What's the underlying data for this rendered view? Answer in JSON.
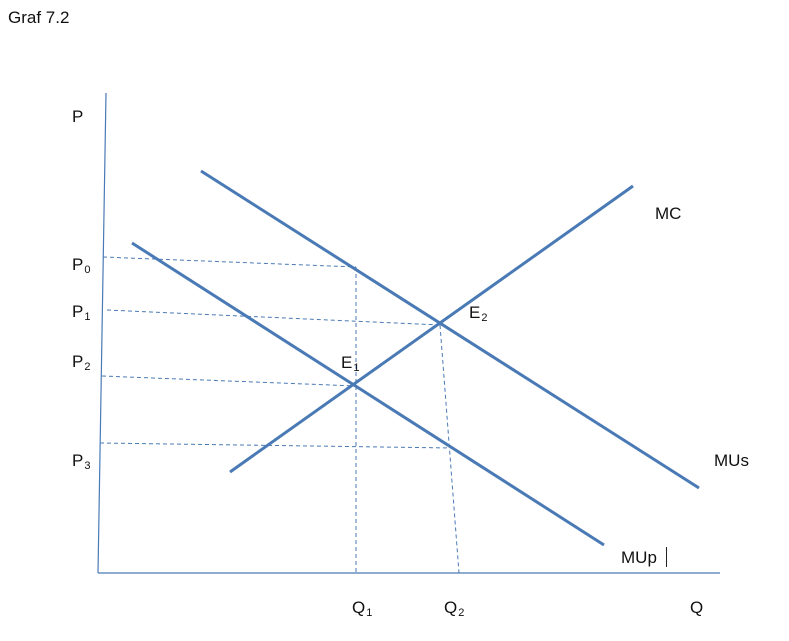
{
  "title": "Graf 7.2",
  "axes": {
    "y_label": "P",
    "x_label": "Q"
  },
  "curves": {
    "mc": "MC",
    "mus": "MUs",
    "mup": "MUp"
  },
  "points": {
    "e1": {
      "base": "E",
      "sub": "1"
    },
    "e2": {
      "base": "E",
      "sub": "2"
    }
  },
  "price_levels": [
    {
      "base": "P",
      "sub": "0"
    },
    {
      "base": "P",
      "sub": "1"
    },
    {
      "base": "P",
      "sub": "2"
    },
    {
      "base": "P",
      "sub": "3"
    }
  ],
  "quantity_levels": [
    {
      "base": "Q",
      "sub": "1"
    },
    {
      "base": "Q",
      "sub": "2"
    }
  ],
  "colors": {
    "curve": "#4a7ab5",
    "axis": "#4a7ab5",
    "guide": "#4a7ab5"
  }
}
